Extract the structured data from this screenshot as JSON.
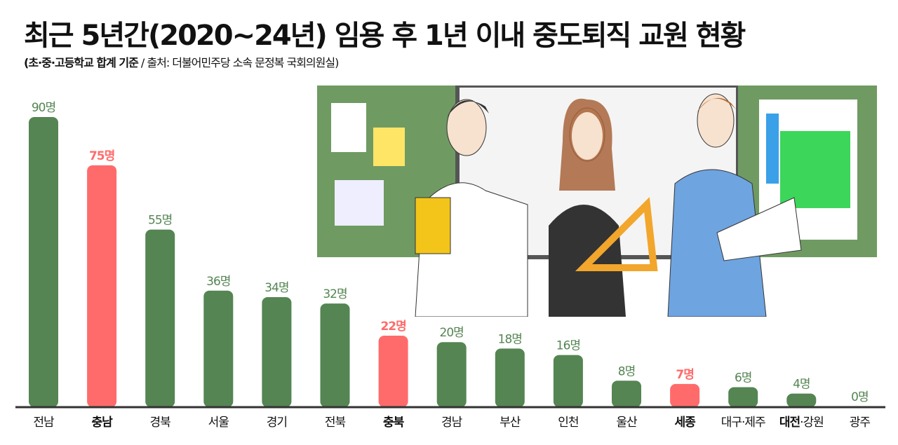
{
  "chart_data": {
    "type": "bar",
    "title": "최근 5년간(2020~24년) 임용 후 1년 이내 중도퇴직 교원 현황",
    "subtitle_bold": "(초·중·고등학교 합계 기준",
    "subtitle_rest": " / 출처: 더불어민주당 소속 문정복 국회의원실)",
    "categories": [
      "전남",
      "충남",
      "경북",
      "서울",
      "경기",
      "전북",
      "충북",
      "경남",
      "부산",
      "인천",
      "울산",
      "세종",
      "대구·제주",
      "대전·강원",
      "광주"
    ],
    "values": [
      90,
      75,
      55,
      36,
      34,
      32,
      22,
      20,
      18,
      16,
      8,
      7,
      6,
      4,
      0
    ],
    "value_labels": [
      "90명",
      "75명",
      "55명",
      "36명",
      "34명",
      "32명",
      "22명",
      "20명",
      "18명",
      "16명",
      "8명",
      "7명",
      "6명",
      "4명",
      "0명"
    ],
    "highlighted": [
      "충남",
      "충북",
      "세종",
      "대전"
    ],
    "ylim": [
      0,
      90
    ],
    "grid": false,
    "colors": {
      "default": "#548552",
      "highlight": "#ff6b6b",
      "axis": "#333333"
    }
  }
}
